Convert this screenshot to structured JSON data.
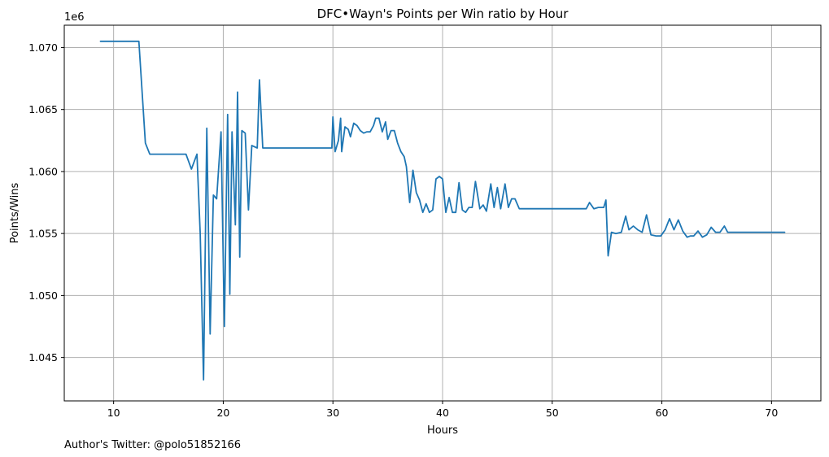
{
  "chart_data": {
    "type": "line",
    "title": "DFC•Wayn's Points per Win ratio by Hour",
    "xlabel": "Hours",
    "ylabel": "Points/Wins",
    "y_offset_label": "1e6",
    "y_multiplier": 1000000,
    "xlim": [
      5.5,
      74.5
    ],
    "ylim": [
      1.0415,
      1.0718
    ],
    "x_ticks": [
      10,
      20,
      30,
      40,
      50,
      60,
      70
    ],
    "y_ticks": [
      1.045,
      1.05,
      1.055,
      1.06,
      1.065,
      1.07
    ],
    "x_tick_labels": [
      "10",
      "20",
      "30",
      "40",
      "50",
      "60",
      "70"
    ],
    "y_tick_labels": [
      "1.045",
      "1.050",
      "1.055",
      "1.060",
      "1.065",
      "1.070"
    ],
    "grid": true,
    "line_color": "#1f77b4",
    "series": [
      {
        "x": [
          8.8,
          12.3,
          12.9,
          13.3,
          16.6,
          17.1,
          17.6,
          17.9,
          18.2,
          18.5,
          18.8,
          19.1,
          19.4,
          19.8,
          20.1,
          20.4,
          20.6,
          20.8,
          21.1,
          21.3,
          21.5,
          21.7,
          22.0,
          22.3,
          22.6,
          23.1,
          23.3,
          23.6,
          29.9,
          30.0,
          30.2,
          30.5,
          30.7,
          30.8,
          31.1,
          31.4,
          31.6,
          31.9,
          32.2,
          32.5,
          32.8,
          33.1,
          33.4,
          33.7,
          33.9,
          34.2,
          34.5,
          34.8,
          35.0,
          35.3,
          35.6,
          35.9,
          36.2,
          36.5,
          36.7,
          37.0,
          37.3,
          37.6,
          37.9,
          38.2,
          38.5,
          38.8,
          39.1,
          39.4,
          39.7,
          40.0,
          40.3,
          40.6,
          40.9,
          41.2,
          41.5,
          41.8,
          42.1,
          42.4,
          42.7,
          43.0,
          43.4,
          43.7,
          44.0,
          44.4,
          44.7,
          45.0,
          45.3,
          45.7,
          46.0,
          46.3,
          46.6,
          47.0,
          47.3,
          47.7,
          53.1,
          53.4,
          53.8,
          54.2,
          54.7,
          54.9,
          55.1,
          55.4,
          55.8,
          56.3,
          56.7,
          57.0,
          57.4,
          57.8,
          58.2,
          58.6,
          59.0,
          59.5,
          59.9,
          60.3,
          60.7,
          61.1,
          61.5,
          61.9,
          62.3,
          62.6,
          62.9,
          63.3,
          63.7,
          64.1,
          64.5,
          64.9,
          65.3,
          65.7,
          66.0,
          71.2
        ],
        "y": [
          1.0705,
          1.0705,
          1.0623,
          1.0614,
          1.0614,
          1.0602,
          1.0614,
          1.055,
          1.0432,
          1.0635,
          1.0469,
          1.0581,
          1.0578,
          1.0632,
          1.0475,
          1.0646,
          1.0501,
          1.0632,
          1.0557,
          1.0664,
          1.0531,
          1.0633,
          1.0631,
          1.0569,
          1.0621,
          1.0619,
          1.0674,
          1.0619,
          1.0619,
          1.0644,
          1.0616,
          1.0625,
          1.0643,
          1.0616,
          1.0636,
          1.0634,
          1.0628,
          1.0639,
          1.0637,
          1.0633,
          1.0631,
          1.0632,
          1.0632,
          1.0637,
          1.0643,
          1.0643,
          1.0632,
          1.064,
          1.0626,
          1.0633,
          1.0633,
          1.0623,
          1.0616,
          1.0612,
          1.0604,
          1.0575,
          1.0601,
          1.0583,
          1.0577,
          1.0567,
          1.0574,
          1.0567,
          1.0569,
          1.0594,
          1.0596,
          1.0594,
          1.0567,
          1.0579,
          1.0567,
          1.0567,
          1.0591,
          1.0569,
          1.0567,
          1.0571,
          1.0571,
          1.0592,
          1.057,
          1.0573,
          1.0568,
          1.059,
          1.0571,
          1.0587,
          1.057,
          1.059,
          1.0571,
          1.0578,
          1.0578,
          1.057,
          1.057,
          1.057,
          1.057,
          1.0575,
          1.057,
          1.0571,
          1.0571,
          1.0577,
          1.0532,
          1.0551,
          1.055,
          1.0551,
          1.0564,
          1.0553,
          1.0556,
          1.0553,
          1.0551,
          1.0565,
          1.0549,
          1.0548,
          1.0548,
          1.0553,
          1.0562,
          1.0553,
          1.0561,
          1.0552,
          1.0547,
          1.0548,
          1.0548,
          1.0552,
          1.0547,
          1.0549,
          1.0555,
          1.0551,
          1.0551,
          1.0556,
          1.0551,
          1.0551
        ]
      }
    ]
  },
  "footer": {
    "credit": "Author's Twitter: @polo51852166"
  }
}
